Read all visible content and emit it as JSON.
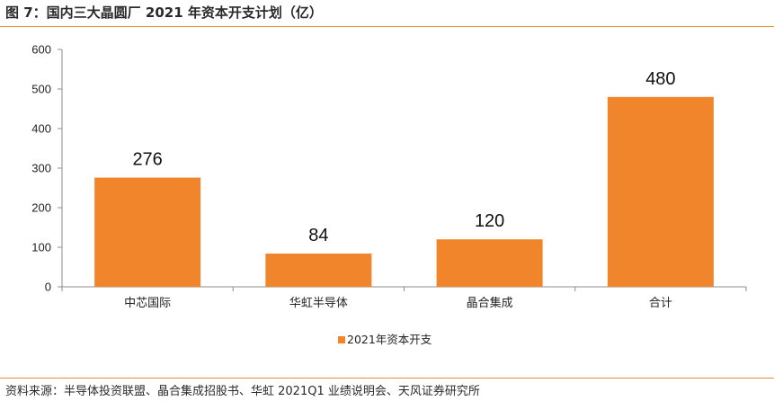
{
  "title": "图 7：国内三大晶圆厂 2021 年资本开支计划（亿）",
  "source": "资料来源：半导体投资联盟、晶合集成招股书、华虹 2021Q1 业绩说明会、天风证券研究所",
  "colors": {
    "bar": "#f0852b",
    "rule": "#e6913a",
    "axis": "#8c8c8c"
  },
  "chart_data": {
    "type": "bar",
    "categories": [
      "中芯国际",
      "华虹半导体",
      "晶合集成",
      "合计"
    ],
    "series": [
      {
        "name": "2021年资本开支",
        "values": [
          276,
          84,
          120,
          480
        ]
      }
    ],
    "data_labels": [
      "276",
      "84",
      "120",
      "480"
    ],
    "ylim": [
      0,
      600
    ],
    "yticks": [
      "0",
      "100",
      "200",
      "300",
      "400",
      "500",
      "600"
    ],
    "grid": false,
    "legend_position": "bottom"
  }
}
